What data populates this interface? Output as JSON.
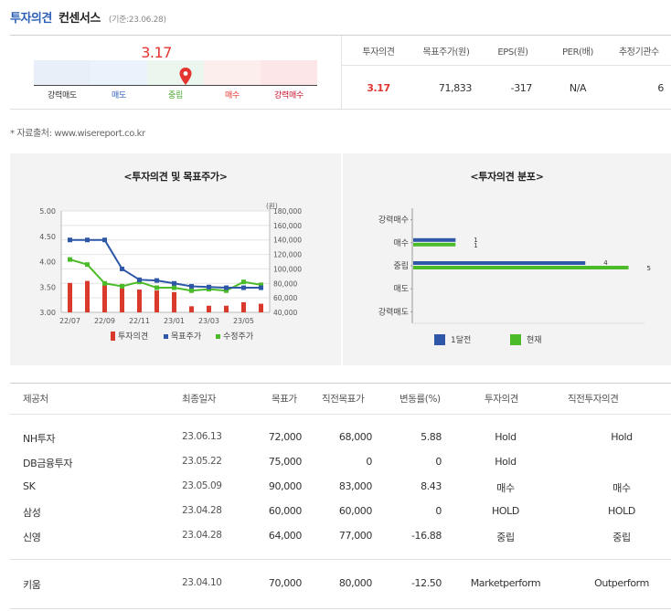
{
  "header": {
    "title": "투자의견",
    "subtitle": "컨센서스",
    "base_date": "(기준:23.06.28)"
  },
  "gauge": {
    "value_text": "3.17",
    "value": 3.17,
    "scale_min": 1,
    "scale_max": 5,
    "segments": [
      {
        "label": "강력매도",
        "color": "#e9eff8",
        "label_color": "#333333"
      },
      {
        "label": "매도",
        "color": "#eaf2fb",
        "label_color": "#2d5fb8"
      },
      {
        "label": "중립",
        "color": "#eaf6ee",
        "label_color": "#4ba82e"
      },
      {
        "label": "매수",
        "color": "#fdeeee",
        "label_color": "#e3342f"
      },
      {
        "label": "강력매수",
        "color": "#fde6e8",
        "label_color": "#c8102e"
      }
    ],
    "pin_color": "#e3342f"
  },
  "summary": {
    "headers": [
      "투자의견",
      "목표주가(원)",
      "EPS(원)",
      "PER(배)",
      "추정기관수"
    ],
    "values": [
      "3.17",
      "71,833",
      "-317",
      "N/A",
      "6"
    ]
  },
  "source_text": "* 자료출처: www.wisereport.co.kr",
  "left_chart": {
    "title": "<투자의견 및 목표주가>",
    "y_left_ticks": [
      "5.00",
      "4.50",
      "4.00",
      "3.50",
      "3.00"
    ],
    "y_right_unit": "(원)",
    "y_right_ticks": [
      "180,000",
      "160,000",
      "140,000",
      "120,000",
      "100,000",
      "80,000",
      "60,000",
      "40,000"
    ],
    "x_ticks": [
      "22/07",
      "22/09",
      "22/11",
      "23/01",
      "23/03",
      "23/05"
    ],
    "legend": [
      "투자의견",
      "목표주가",
      "수정주가"
    ],
    "colors": {
      "opinion": "#d93a2b",
      "target": "#2e57a8",
      "price": "#4cbb2a"
    }
  },
  "right_chart": {
    "title": "<투자의견 분포>",
    "categories": [
      "강력매수",
      "매수",
      "중립",
      "매도",
      "강력매도"
    ],
    "legend": [
      "1달전",
      "현재"
    ],
    "colors": {
      "prev": "#2e57a8",
      "curr": "#4cbb2a"
    }
  },
  "chart_data": [
    {
      "type": "bar",
      "title": "<투자의견 및 목표주가>",
      "x": [
        "22/07",
        "22/08",
        "22/09",
        "22/10",
        "22/11",
        "22/12",
        "23/01",
        "23/02",
        "23/03",
        "23/04",
        "23/05",
        "23/06"
      ],
      "ylim": [
        3.0,
        5.0
      ],
      "y2lim": [
        40000,
        180000
      ],
      "y2label": "(원)",
      "series": [
        {
          "name": "투자의견",
          "type": "bar",
          "axis": "left",
          "values": [
            3.58,
            3.62,
            3.58,
            3.56,
            3.45,
            3.43,
            3.4,
            3.12,
            3.13,
            3.13,
            3.2,
            3.17
          ]
        },
        {
          "name": "목표주가",
          "type": "line",
          "axis": "right",
          "values": [
            140000,
            140000,
            140000,
            100000,
            85000,
            84000,
            80000,
            76000,
            75000,
            74000,
            74000,
            74000
          ]
        },
        {
          "name": "수정주가",
          "type": "line",
          "axis": "right",
          "values": [
            113000,
            106000,
            80000,
            76000,
            82000,
            74000,
            74000,
            70000,
            72000,
            70000,
            82000,
            78000
          ]
        }
      ]
    },
    {
      "type": "bar",
      "title": "<투자의견 분포>",
      "categories": [
        "강력매수",
        "매수",
        "중립",
        "매도",
        "강력매도"
      ],
      "series": [
        {
          "name": "1달전",
          "values": [
            0,
            1,
            4,
            0,
            0
          ]
        },
        {
          "name": "현재",
          "values": [
            0,
            1,
            5,
            0,
            0
          ]
        }
      ]
    }
  ],
  "table": {
    "headers": [
      "제공처",
      "최종일자",
      "목표가",
      "직전목표가",
      "변동률(%)",
      "투자의견",
      "직전투자의견"
    ],
    "rows": [
      [
        "NH투자",
        "23.06.13",
        "72,000",
        "68,000",
        "5.88",
        "Hold",
        "Hold"
      ],
      [
        "DB금융투자",
        "23.05.22",
        "75,000",
        "0",
        "0",
        "Hold",
        ""
      ],
      [
        "SK",
        "23.05.09",
        "90,000",
        "83,000",
        "8.43",
        "매수",
        "매수"
      ],
      [
        "삼성",
        "23.04.28",
        "60,000",
        "60,000",
        "0",
        "HOLD",
        "HOLD"
      ],
      [
        "신영",
        "23.04.28",
        "64,000",
        "77,000",
        "-16.88",
        "중립",
        "중립"
      ]
    ],
    "extra_rows": [
      [
        "키움",
        "23.04.10",
        "70,000",
        "80,000",
        "-12.50",
        "Marketperform",
        "Outperform"
      ]
    ]
  }
}
